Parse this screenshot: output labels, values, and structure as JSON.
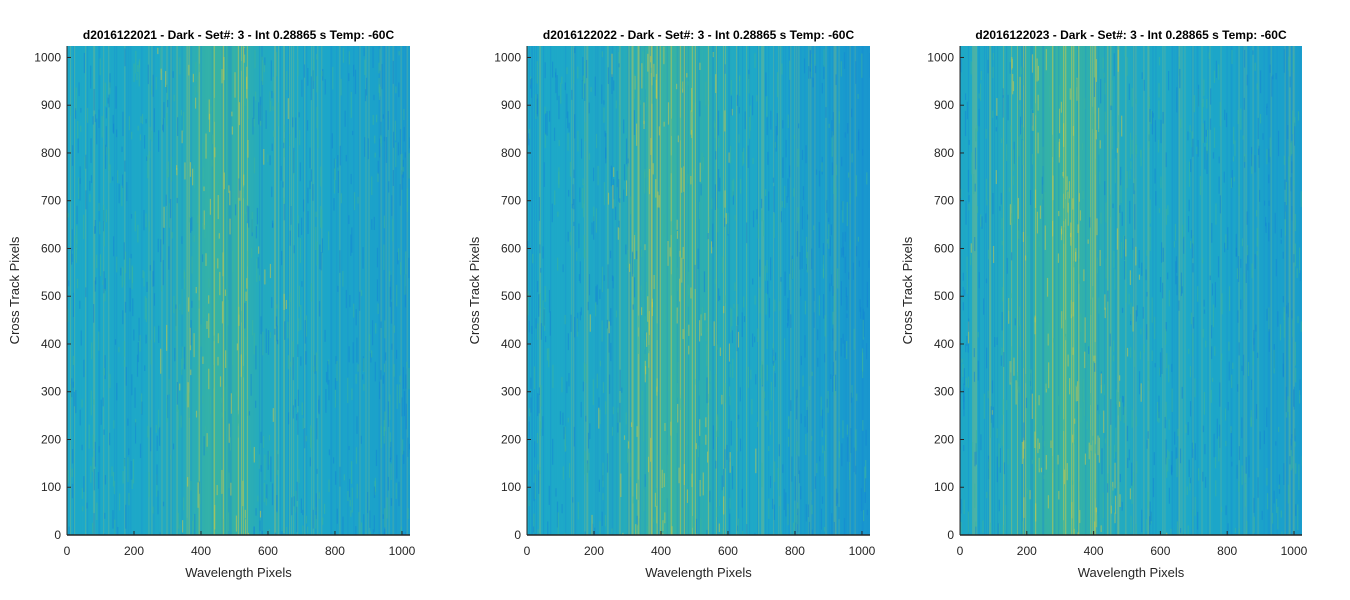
{
  "chart_data": [
    {
      "type": "heatmap",
      "title": "d2016122021 - Dark - Set#: 3 - Int 0.28865 s Temp: -60C",
      "xlabel": "Wavelength Pixels",
      "ylabel": "Cross Track Pixels",
      "xlim": [
        0,
        1024
      ],
      "ylim": [
        0,
        1024
      ],
      "xticks": [
        0,
        200,
        400,
        600,
        800,
        1000
      ],
      "yticks": [
        0,
        100,
        200,
        300,
        400,
        500,
        600,
        700,
        800,
        900,
        1000
      ],
      "bright_band": {
        "center": 460,
        "width": 110
      },
      "colors": {
        "base": "#1ea8c8",
        "low": "#1487d4",
        "high": "#c9c94a",
        "mid": "#3cb49c"
      }
    },
    {
      "type": "heatmap",
      "title": "d2016122022 - Dark - Set#: 3 - Int 0.28865 s Temp: -60C",
      "xlabel": "Wavelength Pixels",
      "ylabel": "Cross Track Pixels",
      "xlim": [
        0,
        1024
      ],
      "ylim": [
        0,
        1024
      ],
      "xticks": [
        0,
        200,
        400,
        600,
        800,
        1000
      ],
      "yticks": [
        0,
        100,
        200,
        300,
        400,
        500,
        600,
        700,
        800,
        900,
        1000
      ],
      "bright_band": {
        "center": 430,
        "width": 140
      },
      "colors": {
        "base": "#1ea8c8",
        "low": "#1487d4",
        "high": "#c9c94a",
        "mid": "#3cb49c"
      }
    },
    {
      "type": "heatmap",
      "title": "d2016122023 - Dark - Set#: 3 - Int 0.28865 s Temp: -60C",
      "xlabel": "Wavelength Pixels",
      "ylabel": "Cross Track Pixels",
      "xlim": [
        0,
        1024
      ],
      "ylim": [
        0,
        1024
      ],
      "xticks": [
        0,
        200,
        400,
        600,
        800,
        1000
      ],
      "yticks": [
        0,
        100,
        200,
        300,
        400,
        500,
        600,
        700,
        800,
        900,
        1000
      ],
      "bright_band": {
        "center": 300,
        "width": 150
      },
      "colors": {
        "base": "#1ea8c8",
        "low": "#1487d4",
        "high": "#c9c94a",
        "mid": "#3cb49c"
      }
    }
  ]
}
